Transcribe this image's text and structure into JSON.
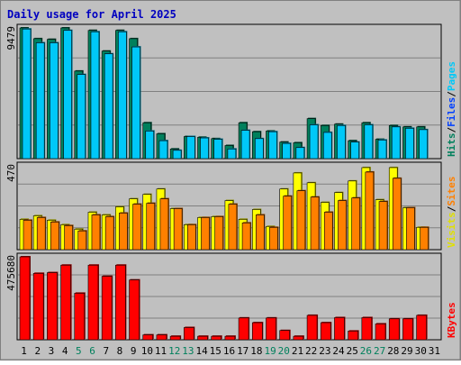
{
  "chart_data": [
    {
      "type": "bar",
      "title": "Daily usage for April 2025",
      "panel": "hits-files-pages",
      "ymax_label": "9479",
      "legend_vertical": [
        {
          "text": "Hits",
          "color": "#00805c"
        },
        {
          "text": "/",
          "color": "#000000"
        },
        {
          "text": "Files",
          "color": "#0040ff"
        },
        {
          "text": "/",
          "color": "#000000"
        },
        {
          "text": "Pages",
          "color": "#00c8f8"
        }
      ],
      "categories": [
        "1",
        "2",
        "3",
        "4",
        "5",
        "6",
        "7",
        "8",
        "9",
        "10",
        "11",
        "12",
        "13",
        "14",
        "15",
        "16",
        "17",
        "18",
        "19",
        "20",
        "21",
        "22",
        "23",
        "24",
        "25",
        "26",
        "27",
        "28",
        "29",
        "30",
        "31"
      ],
      "weekend_days": [
        "5",
        "6",
        "12",
        "13",
        "19",
        "20",
        "26",
        "27"
      ],
      "ylim": [
        0,
        9479
      ],
      "series": [
        {
          "name": "Hits",
          "color": "#00805c",
          "values": [
            9479,
            8700,
            8650,
            9479,
            6350,
            9300,
            7800,
            9300,
            8700,
            2600,
            1800,
            700,
            1600,
            1550,
            1450,
            950,
            2600,
            1950,
            2000,
            1200,
            1150,
            2900,
            2400,
            2500,
            1300,
            2600,
            1400,
            2400,
            2300,
            2300,
            null
          ]
        },
        {
          "name": "Files",
          "color": "#0040ff",
          "values": [
            null,
            null,
            null,
            null,
            null,
            null,
            null,
            null,
            null,
            null,
            null,
            null,
            null,
            null,
            null,
            null,
            null,
            null,
            null,
            null,
            null,
            null,
            null,
            null,
            null,
            null,
            null,
            null,
            null,
            null,
            null
          ]
        },
        {
          "name": "Pages",
          "color": "#00c8f8",
          "values": [
            9400,
            8400,
            8400,
            9300,
            6100,
            9200,
            7600,
            9200,
            8100,
            2000,
            1300,
            600,
            1600,
            1500,
            1400,
            700,
            2050,
            1450,
            1950,
            1100,
            800,
            2450,
            1900,
            2400,
            1200,
            2450,
            1350,
            2300,
            2200,
            2100,
            null
          ]
        }
      ]
    },
    {
      "type": "bar",
      "panel": "visits-sites",
      "ymax_label": "470",
      "legend_vertical": [
        {
          "text": "Visits",
          "color": "#e0e000"
        },
        {
          "text": "/",
          "color": "#000000"
        },
        {
          "text": "Sites",
          "color": "#ff8000"
        }
      ],
      "categories": [
        "1",
        "2",
        "3",
        "4",
        "5",
        "6",
        "7",
        "8",
        "9",
        "10",
        "11",
        "12",
        "13",
        "14",
        "15",
        "16",
        "17",
        "18",
        "19",
        "20",
        "21",
        "22",
        "23",
        "24",
        "25",
        "26",
        "27",
        "28",
        "29",
        "30",
        "31"
      ],
      "ylim": [
        0,
        470
      ],
      "series": [
        {
          "name": "Visits",
          "color": "#ffff00",
          "values": [
            170,
            190,
            165,
            140,
            115,
            210,
            195,
            240,
            285,
            310,
            340,
            230,
            140,
            180,
            185,
            275,
            170,
            225,
            130,
            340,
            430,
            375,
            265,
            320,
            385,
            460,
            280,
            460,
            235,
            125,
            null
          ]
        },
        {
          "name": "Sites",
          "color": "#ff8000",
          "values": [
            165,
            180,
            155,
            135,
            105,
            195,
            185,
            205,
            255,
            260,
            285,
            230,
            140,
            180,
            185,
            255,
            150,
            195,
            125,
            300,
            330,
            295,
            210,
            275,
            290,
            435,
            270,
            400,
            235,
            125,
            null
          ]
        }
      ]
    },
    {
      "type": "bar",
      "panel": "kbytes",
      "ymax_label": "475680",
      "legend_vertical": [
        {
          "text": "KBytes",
          "color": "#ff0000"
        }
      ],
      "categories": [
        "1",
        "2",
        "3",
        "4",
        "5",
        "6",
        "7",
        "8",
        "9",
        "10",
        "11",
        "12",
        "13",
        "14",
        "15",
        "16",
        "17",
        "18",
        "19",
        "20",
        "21",
        "22",
        "23",
        "24",
        "25",
        "26",
        "27",
        "28",
        "29",
        "30",
        "31"
      ],
      "ylim": [
        0,
        475680
      ],
      "series": [
        {
          "name": "KBytes",
          "color": "#ff0000",
          "values": [
            475680,
            381000,
            385000,
            428000,
            267000,
            428000,
            364000,
            428000,
            343000,
            28000,
            28000,
            20000,
            70000,
            20000,
            20000,
            20000,
            125000,
            98000,
            125000,
            53000,
            20000,
            140000,
            98000,
            127000,
            50000,
            127000,
            91000,
            120000,
            120000,
            140000,
            null
          ]
        }
      ]
    }
  ]
}
